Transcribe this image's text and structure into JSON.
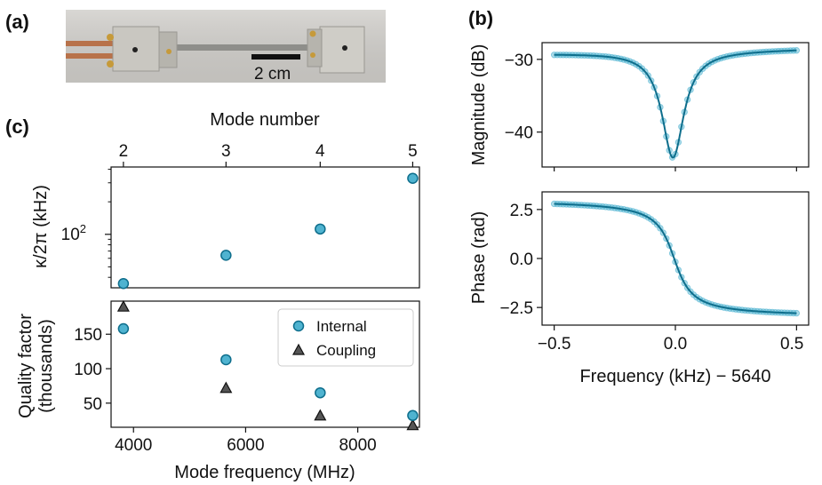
{
  "panels": {
    "a": "(a)",
    "b": "(b)",
    "c": "(c)"
  },
  "photo": {
    "scale_label": "2 cm"
  },
  "colors": {
    "teal": "#0e6e8c",
    "teal_light": "#4fb3d0",
    "triangle": "#555555"
  },
  "chart_data": [
    {
      "id": "c_top",
      "type": "scatter",
      "top_xlabel": "Mode number",
      "top_ticks": [
        "2",
        "3",
        "4",
        "5"
      ],
      "ylabel": "κ/2π (kHz)",
      "yscale": "log",
      "ytick_label": "10",
      "ytick_sup": "2",
      "ylim": [
        32,
        420
      ],
      "x": [
        3820,
        5650,
        7330,
        8980
      ],
      "y": [
        35,
        64,
        112,
        330
      ],
      "xlim": [
        3600,
        9100
      ]
    },
    {
      "id": "c_bottom",
      "type": "scatter",
      "xlabel": "Mode frequency (MHz)",
      "ylabel_line1": "Quality factor",
      "ylabel_line2": "(thousands)",
      "xticks": [
        "4000",
        "6000",
        "8000"
      ],
      "yticks": [
        "50",
        "100",
        "150"
      ],
      "xlim": [
        3600,
        9100
      ],
      "ylim": [
        15,
        198
      ],
      "series": [
        {
          "name": "Internal",
          "x": [
            3820,
            5650,
            7330,
            8980
          ],
          "y": [
            158,
            113,
            65,
            32
          ]
        },
        {
          "name": "Coupling",
          "x": [
            3820,
            5650,
            7330,
            8980
          ],
          "y": [
            190,
            72,
            32,
            18
          ]
        }
      ]
    },
    {
      "id": "b_top",
      "type": "line",
      "ylabel": "Magnitude (dB)",
      "yticks": [
        "−30",
        "−40"
      ],
      "ylim": [
        -44.8,
        -27.7
      ],
      "xlim": [
        -0.55,
        0.55
      ],
      "dip_depth_db": -43.5,
      "baseline_db": -28.9
    },
    {
      "id": "b_bottom",
      "type": "line",
      "xlabel": "Frequency (kHz) − 5640",
      "ylabel": "Phase (rad)",
      "xticks": [
        "−0.5",
        "0.0",
        "0.5"
      ],
      "yticks": [
        "2.5",
        "0.0",
        "−2.5"
      ],
      "xlim": [
        -0.55,
        0.55
      ],
      "ylim": [
        -3.4,
        3.4
      ],
      "phase_max": 3.0,
      "phase_min": -3.0
    }
  ]
}
